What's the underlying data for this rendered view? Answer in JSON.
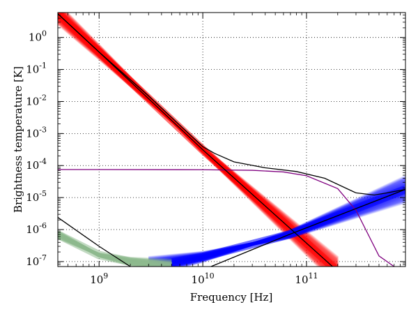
{
  "chart_data": {
    "type": "line",
    "xlabel": "Frequency [Hz]",
    "ylabel": "Brightness temperature [K]",
    "xscale": "log",
    "yscale": "log",
    "xlim": [
      400000000.0,
      900000000000.0
    ],
    "ylim": [
      7e-08,
      6
    ],
    "grid": true,
    "legend": "none",
    "x_ticks": [
      {
        "value": 1000000000.0,
        "base": "10",
        "exp": "9"
      },
      {
        "value": 10000000000.0,
        "base": "10",
        "exp": "10"
      },
      {
        "value": 100000000000.0,
        "base": "10",
        "exp": "11"
      }
    ],
    "y_ticks": [
      {
        "value": 1,
        "base": "10",
        "exp": "0"
      },
      {
        "value": 0.1,
        "base": "10",
        "exp": "-1"
      },
      {
        "value": 0.01,
        "base": "10",
        "exp": "-2"
      },
      {
        "value": 0.001,
        "base": "10",
        "exp": "-3"
      },
      {
        "value": 0.0001,
        "base": "10",
        "exp": "-4"
      },
      {
        "value": 1e-05,
        "base": "10",
        "exp": "-5"
      },
      {
        "value": 1e-06,
        "base": "10",
        "exp": "-6"
      },
      {
        "value": 1e-07,
        "base": "10",
        "exp": "-7"
      }
    ],
    "series": [
      {
        "color": "#ff0000",
        "style": "sample-band",
        "x": [
          400000000.0,
          1000000000.0,
          10000000000.0,
          200000000000.0
        ],
        "y": [
          5.5,
          0.35,
          0.00031,
          5e-08
        ]
      },
      {
        "color": "#0000ff",
        "style": "sample-band",
        "x": [
          3000000000.0,
          10000000000.0,
          68000000000.0,
          900000000000.0
        ],
        "y": [
          7e-08,
          1.4e-07,
          7e-07,
          1.8e-05
        ]
      },
      {
        "color": "#8fbc8f",
        "style": "sample-band",
        "x": [
          400000000.0,
          1000000000.0,
          2000000000.0,
          5000000000.0
        ],
        "y": [
          7e-07,
          1.6e-07,
          1e-07,
          7e-08
        ]
      },
      {
        "color": "#7f007f",
        "style": "line",
        "x": [
          400000000.0,
          1000000000.0,
          10000000000.0,
          30000000000.0,
          60000000000.0,
          100000000000.0,
          200000000000.0,
          300000000000.0,
          500000000000.0,
          700000000000.0
        ],
        "y": [
          7.5e-05,
          7.5e-05,
          7.4e-05,
          7.1e-05,
          6.3e-05,
          4.8e-05,
          1.9e-05,
          4e-06,
          1.5e-07,
          7e-08
        ]
      },
      {
        "color": "#000000",
        "style": "line",
        "x": [
          400000000.0,
          1000000000.0,
          3000000000.0,
          10000000000.0,
          13000000000.0,
          20000000000.0,
          40000000000.0,
          80000000000.0,
          150000000000.0,
          300000000000.0,
          450000000000.0,
          600000000000.0,
          900000000000.0
        ],
        "y": [
          5.5,
          0.35,
          0.015,
          0.00039,
          0.00024,
          0.00013,
          8.5e-05,
          6.5e-05,
          4e-05,
          1.4e-05,
          1.2e-05,
          1.4e-05,
          1.8e-05
        ]
      },
      {
        "color": "#000000",
        "style": "line",
        "x": [
          400000000.0,
          1000000000.0,
          10000000000.0,
          200000000000.0
        ],
        "y": [
          5.5,
          0.35,
          0.00031,
          5e-08
        ]
      },
      {
        "color": "#000000",
        "style": "line",
        "x": [
          12000000000.0,
          68000000000.0,
          900000000000.0
        ],
        "y": [
          7e-08,
          7e-07,
          1.8e-05
        ]
      },
      {
        "color": "#000000",
        "style": "line",
        "x": [
          400000000.0,
          1000000000.0,
          2000000000.0
        ],
        "y": [
          2.4e-06,
          3e-07,
          7e-08
        ]
      }
    ]
  }
}
